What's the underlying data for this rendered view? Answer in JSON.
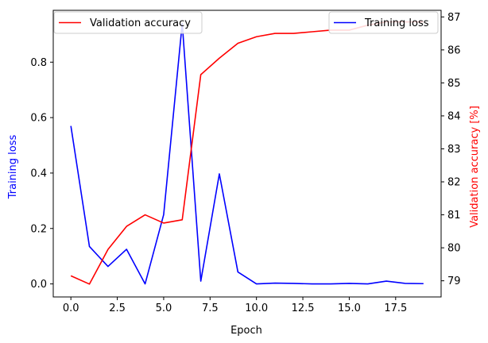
{
  "chart_data": {
    "type": "line",
    "xlabel": "Epoch",
    "x": [
      0,
      1,
      2,
      3,
      4,
      5,
      6,
      7,
      8,
      9,
      10,
      11,
      12,
      13,
      14,
      15,
      16,
      17,
      18,
      19
    ],
    "xlim": [
      -0.95,
      19.95
    ],
    "xticks": [
      0.0,
      2.5,
      5.0,
      7.5,
      10.0,
      12.5,
      15.0,
      17.5
    ],
    "xtick_labels": [
      "0.0",
      "2.5",
      "5.0",
      "7.5",
      "10.0",
      "12.5",
      "15.0",
      "17.5"
    ],
    "left_axis": {
      "label": "Training loss",
      "color": "#0000ff",
      "ylim": [
        -0.047,
        0.987
      ],
      "ticks": [
        0.0,
        0.2,
        0.4,
        0.6,
        0.8
      ],
      "tick_labels": [
        "0.0",
        "0.2",
        "0.4",
        "0.6",
        "0.8"
      ]
    },
    "right_axis": {
      "label": "Validation accuracy [%]",
      "color": "#ff0000",
      "ylim": [
        78.51,
        87.2
      ],
      "ticks": [
        79,
        80,
        81,
        82,
        83,
        84,
        85,
        86,
        87
      ],
      "tick_labels": [
        "79",
        "80",
        "81",
        "82",
        "83",
        "84",
        "85",
        "86",
        "87"
      ]
    },
    "series": [
      {
        "name": "Training loss",
        "axis": "left",
        "color": "#0000ff",
        "values": [
          0.57,
          0.135,
          0.063,
          0.125,
          0.0,
          0.25,
          0.94,
          0.01,
          0.397,
          0.043,
          0.0,
          0.003,
          0.002,
          0.0,
          0.0,
          0.002,
          0.0,
          0.01,
          0.002,
          0.001
        ]
      },
      {
        "name": "Validation accuracy",
        "axis": "right",
        "color": "#ff0000",
        "values": [
          79.15,
          78.9,
          79.95,
          80.65,
          81.0,
          80.75,
          80.85,
          85.25,
          85.75,
          86.2,
          86.4,
          86.5,
          86.5,
          86.55,
          86.6,
          86.6,
          86.75,
          86.85,
          86.85,
          86.85
        ]
      }
    ],
    "legends": [
      {
        "position": "upper-left",
        "entries": [
          {
            "label": "Validation accuracy",
            "color": "#ff0000"
          }
        ]
      },
      {
        "position": "upper-right",
        "entries": [
          {
            "label": "Training loss",
            "color": "#0000ff"
          }
        ]
      }
    ],
    "grid": false
  }
}
